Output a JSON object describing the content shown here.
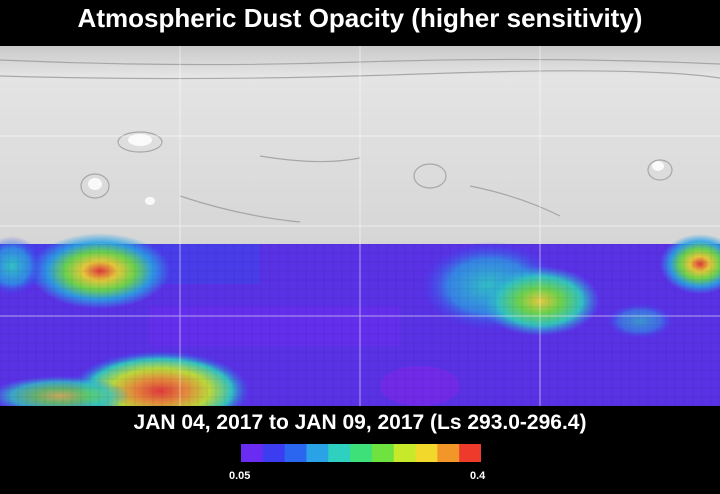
{
  "title": "Atmospheric Dust Opacity (higher sensitivity)",
  "date_range": "JAN 04, 2017 to JAN 09, 2017 (Ls 293.0-296.4)",
  "colorbar": {
    "min_label": "0.05",
    "max_label": "0.4",
    "colors": [
      "#6a2cf2",
      "#3c3cf0",
      "#2a66f0",
      "#2aa2e6",
      "#2ed0c0",
      "#3ee07a",
      "#6ee23e",
      "#c6ea2a",
      "#f2d82a",
      "#f2962a",
      "#ee3a2a"
    ]
  },
  "map": {
    "no_data_fill": "#d8d8d8",
    "grid_color": "#ffffff",
    "dust_bands": [
      {
        "region": "west-high-dust-arc",
        "level": 0.33
      },
      {
        "region": "south-basin-high-dust",
        "level": 0.4
      },
      {
        "region": "central-north-dust-lobe",
        "level": 0.28
      },
      {
        "region": "east-edge-dust",
        "level": 0.35
      }
    ]
  }
}
